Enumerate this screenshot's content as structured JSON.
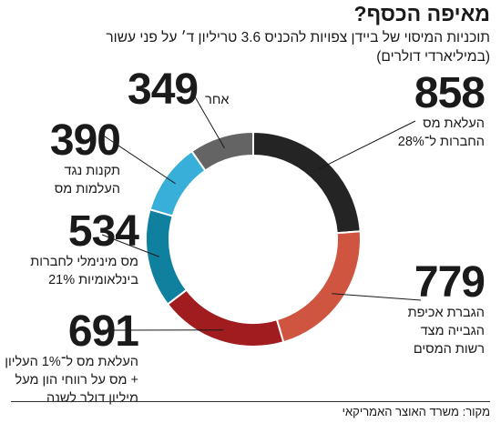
{
  "chart_data": {
    "type": "pie",
    "donut": true,
    "title": "מאיפה הכסף?",
    "subtitle_lines": [
      "תוכניות המיסוי של ביידן צפויות להכניס 3.6 טריליון ד׳ על פני עשור",
      "(במיליארדי דולרים)"
    ],
    "slices": [
      {
        "value": 858,
        "label_lines": [
          "העלאת מס",
          "החברות ל־28%"
        ],
        "color": "#242424"
      },
      {
        "value": 779,
        "label_lines": [
          "הגברת אכיפת",
          "הגבייה מצד",
          "רשות המסים"
        ],
        "color": "#cf5540"
      },
      {
        "value": 691,
        "label_lines": [
          "העלאת מס ל־1% העליון",
          "+ מס על רווחי הון מעל",
          "מיליון דולר לשנה"
        ],
        "color": "#a01c1f"
      },
      {
        "value": 534,
        "label_lines": [
          "מס מינימלי לחברות",
          "בינלאומיות 21%"
        ],
        "color": "#0f809e"
      },
      {
        "value": 390,
        "label_lines": [
          "תקנות נגד",
          "העלמות מס"
        ],
        "color": "#37afd8"
      },
      {
        "value": 349,
        "label_lines": [
          "אחר"
        ],
        "color": "#646464"
      }
    ],
    "source": "מקור: משרד האוצר האמריקאי"
  }
}
